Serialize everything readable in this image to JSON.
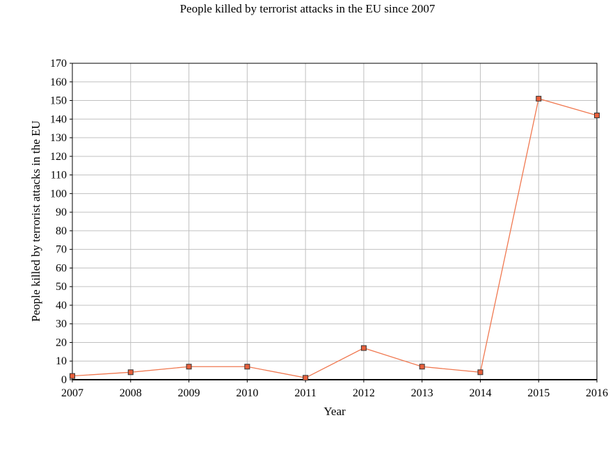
{
  "chart_data": {
    "type": "line",
    "title": "People killed by terrorist attacks in the EU since 2007",
    "xlabel": "Year",
    "ylabel": "People killed by terrorist attacks in the EU",
    "categories": [
      "2007",
      "2008",
      "2009",
      "2010",
      "2011",
      "2012",
      "2013",
      "2014",
      "2015",
      "2016"
    ],
    "series": [
      {
        "values": [
          2,
          4,
          7,
          7,
          1,
          17,
          7,
          4,
          151,
          142
        ]
      }
    ],
    "ylim": [
      0,
      170
    ],
    "yticks": [
      0,
      10,
      20,
      30,
      40,
      50,
      60,
      70,
      80,
      90,
      100,
      110,
      120,
      130,
      140,
      150,
      160,
      170
    ],
    "grid": true,
    "colors": {
      "line": "#f07850",
      "marker_fill": "#e8603c",
      "marker_stroke": "#333333",
      "grid": "#c0c0c0"
    }
  }
}
